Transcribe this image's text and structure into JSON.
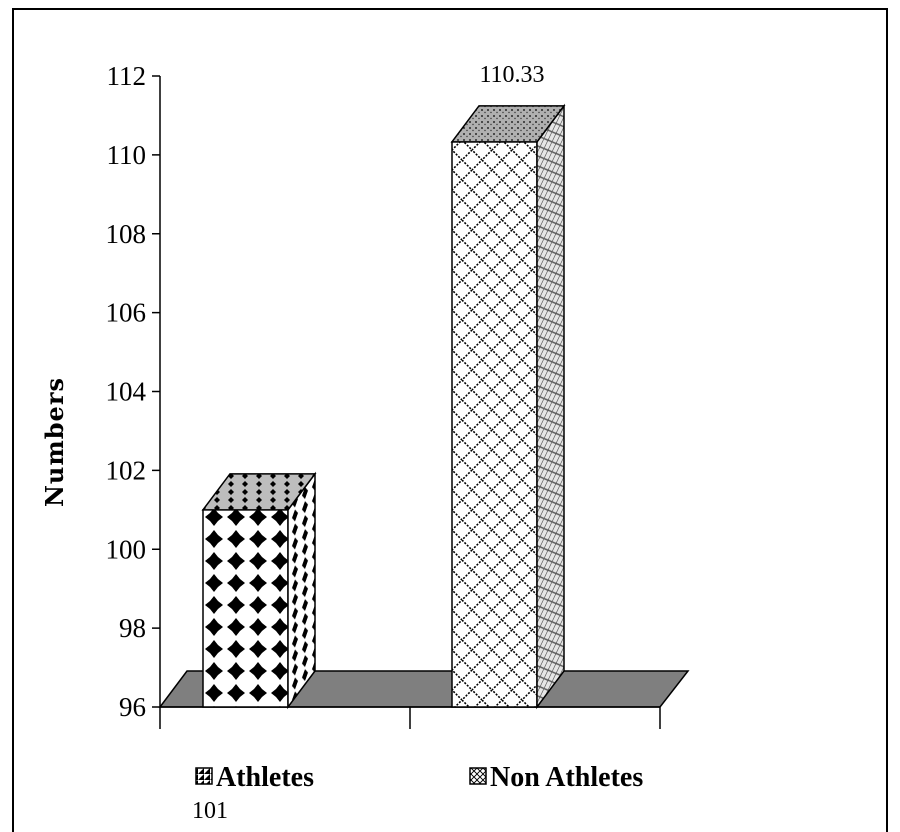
{
  "chart_data": {
    "type": "bar",
    "categories": [
      "Athletes",
      "Non Athletes"
    ],
    "values": [
      101,
      110.33
    ],
    "data_labels": [
      "101",
      "110.33"
    ],
    "ylabel": "Numbers",
    "xlabel": "",
    "ylim": [
      96,
      112
    ],
    "yticks": [
      "96",
      "98",
      "100",
      "102",
      "104",
      "106",
      "108",
      "110",
      "112"
    ],
    "grid": false,
    "legend": "bottom",
    "three_d": true,
    "floor_color": "#7f7f7f"
  }
}
